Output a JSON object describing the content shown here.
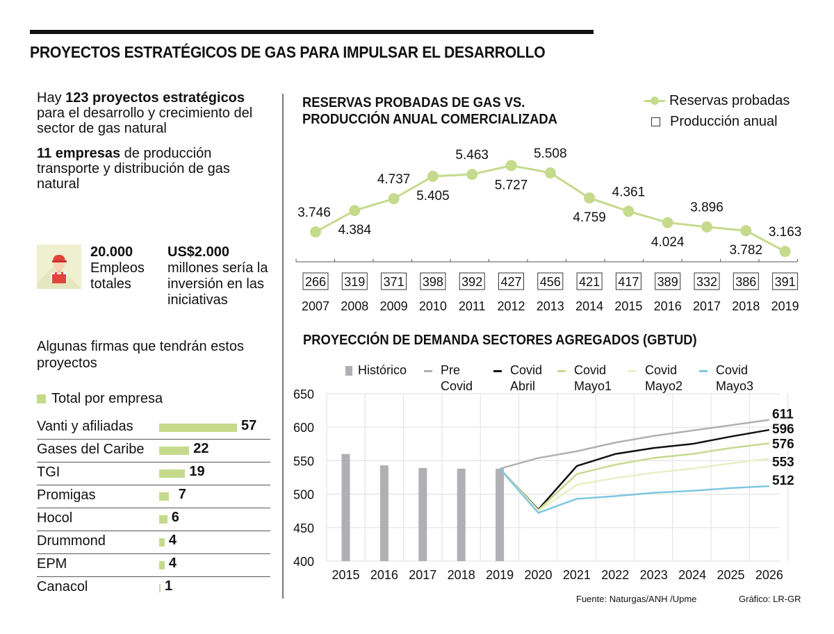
{
  "header": {
    "title": "PROYECTOS ESTRATÉGICOS DE GAS PARA IMPULSAR EL DESARROLLO"
  },
  "intro": {
    "p1_pre": "Hay ",
    "p1_bold": "123 proyectos estratégicos",
    "p1_post": " para el desarrollo y crecimiento del sector de gas natural",
    "p2_bold": "11 empresas",
    "p2_post": " de producción transporte y distribución de gas natural"
  },
  "stats": {
    "icon": "worker-icon",
    "jobs_value": "20.000",
    "jobs_label": "Empleos totales",
    "investment_value": "US$2.000",
    "investment_label": "millones sería la inversión en las iniciativas"
  },
  "firms": {
    "title": "Algunas firmas que tendrán estos proyectos",
    "legend": "Total por empresa",
    "color": "#c5da8c",
    "items": [
      {
        "name": "Vanti y afiliadas",
        "value": 57,
        "label": "57"
      },
      {
        "name": "Gases del Caribe",
        "value": 22,
        "label": "22"
      },
      {
        "name": "TGI",
        "value": 19,
        "label": "19"
      },
      {
        "name": "Promigas",
        "value": 7,
        "label": "7"
      },
      {
        "name": "Hocol",
        "value": 6,
        "label": "6"
      },
      {
        "name": "Drummond",
        "value": 4,
        "label": "4"
      },
      {
        "name": "EPM",
        "value": 4,
        "label": "4"
      },
      {
        "name": "Canacol",
        "value": 1,
        "label": "1"
      }
    ]
  },
  "footer": {
    "source": "Fuente: Naturgas/ANH /Upme",
    "credit": "Gráfico: LR-GR"
  },
  "chart_data": [
    {
      "type": "line",
      "title": "RESERVAS PROBADAS DE GAS VS. PRODUCCIÓN ANUAL COMERCIALIZADA",
      "title_line1": "RESERVAS PROBADAS DE GAS VS.",
      "title_line2": "PRODUCCIÓN ANUAL COMERCIALIZADA",
      "legend": [
        "Reservas probadas",
        "Producción anual"
      ],
      "legend_position": "top-right",
      "categories": [
        "2007",
        "2008",
        "2009",
        "2010",
        "2011",
        "2012",
        "2013",
        "2014",
        "2015",
        "2016",
        "2017",
        "2018",
        "2019"
      ],
      "series": [
        {
          "name": "Reservas probadas",
          "color": "#c5da8c",
          "values": [
            3746,
            4384,
            4737,
            5405,
            5463,
            5727,
            5508,
            4759,
            4361,
            4024,
            3896,
            3782,
            3163
          ],
          "labels": [
            "3.746",
            "4.384",
            "4.737",
            "5.405",
            "5.463",
            "5.727",
            "5.508",
            "4.759",
            "4.361",
            "4.024",
            "3.896",
            "3.782",
            "3.163"
          ]
        },
        {
          "name": "Producción anual",
          "type": "table",
          "values": [
            266,
            319,
            371,
            398,
            392,
            427,
            456,
            421,
            417,
            389,
            332,
            386,
            391
          ]
        }
      ],
      "grid": false
    },
    {
      "type": "bar+line",
      "title": "PROYECCIÓN DE DEMANDA SECTORES AGREGADOS (GBTUD)",
      "legend_position": "top",
      "x": [
        "2015",
        "2016",
        "2017",
        "2018",
        "2019",
        "2020",
        "2021",
        "2022",
        "2023",
        "2024",
        "2025",
        "2026"
      ],
      "ylim": [
        400,
        650
      ],
      "yticks": [
        "400",
        "450",
        "500",
        "550",
        "600",
        "650"
      ],
      "grid": true,
      "bars": {
        "name": "Histórico",
        "color": "#b0afb4",
        "x": [
          "2015",
          "2016",
          "2017",
          "2018",
          "2019"
        ],
        "values": [
          560,
          543,
          539,
          538,
          538
        ]
      },
      "series": [
        {
          "name": "Pre Covid",
          "legend": [
            "Pre",
            "Covid"
          ],
          "color": "#b0afb4",
          "x": [
            "2019",
            "2020",
            "2021",
            "2022",
            "2023",
            "2024",
            "2025",
            "2026"
          ],
          "values": [
            538,
            554,
            564,
            577,
            587,
            595,
            603,
            611
          ],
          "end_label": "611"
        },
        {
          "name": "Covid Abril",
          "legend": [
            "Covid",
            "Abril"
          ],
          "color": "#111111",
          "x": [
            "2019",
            "2020",
            "2021",
            "2022",
            "2023",
            "2024",
            "2025",
            "2026"
          ],
          "values": [
            538,
            477,
            542,
            560,
            569,
            575,
            586,
            596
          ],
          "end_label": "596"
        },
        {
          "name": "Covid Mayo1",
          "legend": [
            "Covid",
            "Mayo1"
          ],
          "color": "#c5da8c",
          "x": [
            "2019",
            "2020",
            "2021",
            "2022",
            "2023",
            "2024",
            "2025",
            "2026"
          ],
          "values": [
            538,
            476,
            530,
            544,
            554,
            560,
            569,
            576
          ],
          "end_label": "576"
        },
        {
          "name": "Covid Mayo2",
          "legend": [
            "Covid",
            "Mayo2"
          ],
          "color": "#e9f0c4",
          "x": [
            "2019",
            "2020",
            "2021",
            "2022",
            "2023",
            "2024",
            "2025",
            "2026"
          ],
          "values": [
            538,
            475,
            514,
            524,
            532,
            538,
            546,
            553
          ],
          "end_label": "553"
        },
        {
          "name": "Covid Mayo3",
          "legend": [
            "Covid",
            "Mayo3"
          ],
          "color": "#7ec7e0",
          "x": [
            "2019",
            "2020",
            "2021",
            "2022",
            "2023",
            "2024",
            "2025",
            "2026"
          ],
          "values": [
            538,
            472,
            493,
            497,
            502,
            505,
            509,
            512
          ],
          "end_label": "512"
        }
      ]
    }
  ]
}
